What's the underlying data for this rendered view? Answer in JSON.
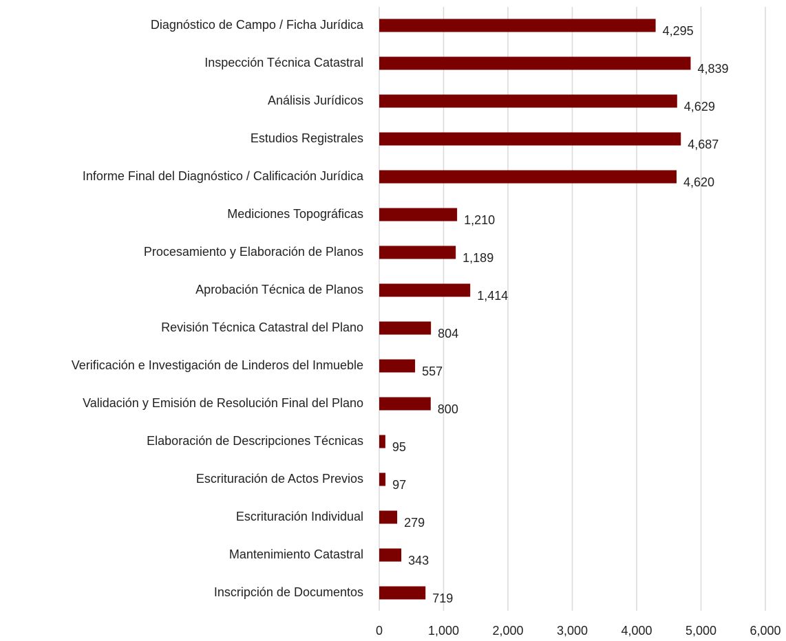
{
  "chart_data": {
    "type": "barh",
    "categories": [
      "Diagnóstico de Campo / Ficha Jurídica",
      "Inspección Técnica Catastral",
      "Análisis Jurídicos",
      "Estudios Registrales",
      "Informe Final del Diagnóstico / Calificación Jurídica",
      "Mediciones Topográficas",
      "Procesamiento y Elaboración de Planos",
      "Aprobación Técnica de Planos",
      "Revisión Técnica Catastral del Plano",
      "Verificación e Investigación de Linderos del Inmueble",
      "Validación y Emisión de Resolución Final del Plano",
      "Elaboración de Descripciones Técnicas",
      "Escrituración de Actos Previos",
      "Escrituración Individual",
      "Mantenimiento Catastral",
      "Inscripción de Documentos"
    ],
    "values": [
      4295,
      4839,
      4629,
      4687,
      4620,
      1210,
      1189,
      1414,
      804,
      557,
      800,
      95,
      97,
      279,
      343,
      719
    ],
    "value_labels": [
      "4,295",
      "4,839",
      "4,629",
      "4,687",
      "4,620",
      "1,210",
      "1,189",
      "1,414",
      "804",
      "557",
      "800",
      "95",
      "97",
      "279",
      "343",
      "719"
    ],
    "color": "#7b0000",
    "xlim": [
      0,
      6000
    ],
    "xticks": [
      0,
      {
        "value": 1000,
        "label": "1,000"
      },
      {
        "value": 2000,
        "label": "2,000"
      },
      {
        "value": 3000,
        "label": "3,000"
      },
      {
        "value": 4000,
        "label": "4,000"
      },
      {
        "value": 5000,
        "label": "5,000"
      },
      {
        "value": 6000,
        "label": "6,000"
      }
    ],
    "grid": true
  }
}
